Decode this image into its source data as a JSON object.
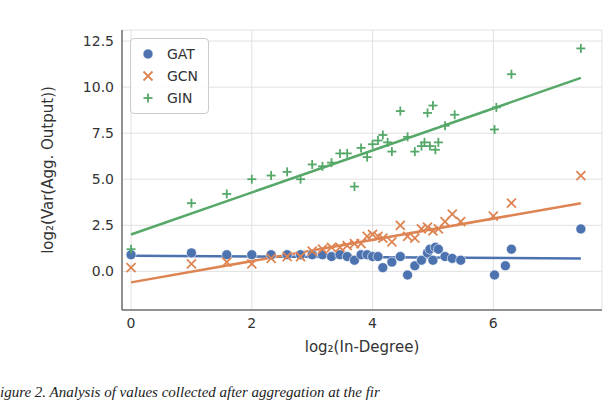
{
  "chart_data": {
    "type": "scatter",
    "x_label": "log₂(In-Degree)",
    "y_label": "log₂(Var(Agg. Output))",
    "caption": "igure 2. Analysis of values collected after aggregation at the fir",
    "xlim": [
      -0.15,
      7.8
    ],
    "xticks": [
      0,
      2,
      4,
      6
    ],
    "ylim": [
      -2.1,
      13.1
    ],
    "yticks": [
      {
        "value": 0,
        "label": "0.0"
      },
      {
        "value": 2.5,
        "label": "2.5"
      },
      {
        "value": 5,
        "label": "5.0"
      },
      {
        "value": 7.5,
        "label": "7.5"
      },
      {
        "value": 10,
        "label": "10.0"
      },
      {
        "value": 12.5,
        "label": "12.5"
      }
    ],
    "grid": true,
    "legend": "upper left",
    "series": [
      {
        "name": "GAT",
        "color": "#4c72b0",
        "marker": "circle",
        "x": [
          0,
          1,
          1.585,
          2,
          2.32,
          2.585,
          2.807,
          3,
          3.17,
          3.32,
          3.46,
          3.58,
          3.7,
          3.81,
          3.91,
          4,
          4.09,
          4.17,
          4.32,
          4.46,
          4.58,
          4.7,
          4.81,
          4.91,
          4.95,
          5,
          5.04,
          5.09,
          5.2,
          5.32,
          5.46,
          6.02,
          6.2,
          6.3,
          7.45
        ],
        "values": [
          0.9,
          1.0,
          0.9,
          0.9,
          0.9,
          0.9,
          0.9,
          0.9,
          0.9,
          0.8,
          0.9,
          0.8,
          0.6,
          0.9,
          0.9,
          0.8,
          0.8,
          0.2,
          0.5,
          0.8,
          -0.2,
          0.3,
          0.6,
          1.0,
          1.2,
          0.6,
          1.3,
          1.2,
          0.8,
          0.7,
          0.6,
          -0.2,
          0.3,
          1.2,
          2.3
        ],
        "trend": {
          "x": [
            0,
            7.45
          ],
          "values": [
            0.85,
            0.7
          ]
        }
      },
      {
        "name": "GCN",
        "color": "#dd8452",
        "marker": "x",
        "x": [
          0,
          1,
          1.585,
          2,
          2.32,
          2.585,
          2.807,
          3,
          3.17,
          3.32,
          3.46,
          3.58,
          3.7,
          3.81,
          3.91,
          4,
          4.09,
          4.17,
          4.32,
          4.46,
          4.58,
          4.7,
          4.81,
          4.91,
          5,
          5.09,
          5.2,
          5.32,
          5.46,
          6.0,
          6.3,
          7.45
        ],
        "values": [
          0.2,
          0.4,
          0.5,
          0.4,
          0.7,
          0.8,
          0.8,
          1.1,
          1.2,
          1.3,
          1.3,
          1.4,
          1.5,
          1.5,
          1.9,
          2.0,
          1.9,
          1.8,
          1.6,
          2.5,
          1.9,
          1.8,
          2.3,
          2.4,
          2.2,
          2.3,
          2.7,
          3.1,
          2.7,
          3.0,
          3.7,
          5.2
        ],
        "trend": {
          "x": [
            0,
            7.45
          ],
          "values": [
            -0.6,
            3.7
          ]
        }
      },
      {
        "name": "GIN",
        "color": "#55a868",
        "marker": "plus",
        "x": [
          0,
          1,
          1.585,
          2,
          2.32,
          2.585,
          2.807,
          3,
          3.17,
          3.32,
          3.46,
          3.58,
          3.7,
          3.81,
          3.91,
          4,
          4.09,
          4.17,
          4.25,
          4.32,
          4.46,
          4.58,
          4.7,
          4.81,
          4.86,
          4.91,
          4.95,
          5,
          5.04,
          5.09,
          5.2,
          5.36,
          6.02,
          6.05,
          6.3,
          7.45
        ],
        "values": [
          1.2,
          3.7,
          4.2,
          5.0,
          5.2,
          5.4,
          5.0,
          5.8,
          5.7,
          5.9,
          6.4,
          6.4,
          4.6,
          6.7,
          6.2,
          6.9,
          7.1,
          7.4,
          7.0,
          6.5,
          8.7,
          7.3,
          6.5,
          6.8,
          7.0,
          8.6,
          6.8,
          9.0,
          6.6,
          7.0,
          7.9,
          8.5,
          7.7,
          8.9,
          10.7,
          12.1
        ],
        "trend": {
          "x": [
            0,
            7.45
          ],
          "values": [
            2.0,
            10.5
          ]
        }
      }
    ]
  }
}
